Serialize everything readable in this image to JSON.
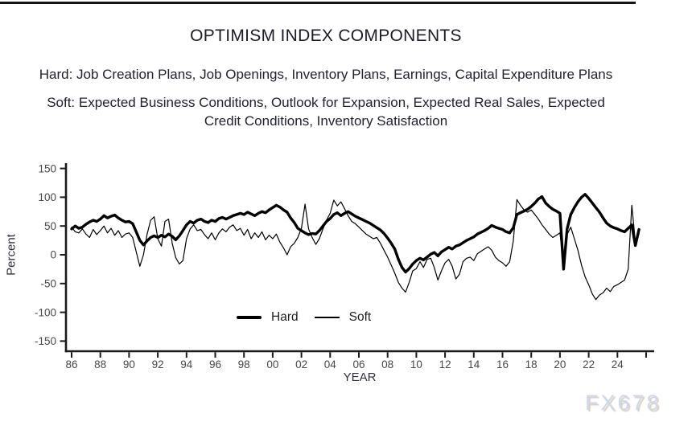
{
  "header": {
    "title": "OPTIMISM INDEX COMPONENTS",
    "hard_line": "Hard: Job Creation Plans, Job Openings, Inventory Plans, Earnings, Capital Expenditure Plans",
    "soft_lines": [
      "Soft: Expected Business Conditions, Outlook for Expansion, Expected Real Sales, Expected",
      "Credit Conditions, Inventory Satisfaction"
    ]
  },
  "watermark": "FX678",
  "chart_data": {
    "type": "line",
    "title": "OPTIMISM INDEX COMPONENTS",
    "xlabel": "YEAR",
    "ylabel": "Percent",
    "grid": false,
    "legend_position": "inside-bottom-center",
    "x_start": 1986.0,
    "x_step": 0.25,
    "xlim": [
      1985.6,
      2026.5
    ],
    "ylim": [
      -150,
      150
    ],
    "yticks": [
      {
        "label": "150",
        "v": 150
      },
      {
        "label": "100",
        "v": 100
      },
      {
        "label": "50",
        "v": 50
      },
      {
        "label": "0",
        "v": 0
      },
      {
        "label": "-50",
        "v": -50
      },
      {
        "label": "-100",
        "v": -100
      },
      {
        "label": "-150",
        "v": -150
      }
    ],
    "xticks": [
      {
        "label": "86",
        "year": 1986
      },
      {
        "label": "88",
        "year": 1988
      },
      {
        "label": "90",
        "year": 1990
      },
      {
        "label": "92",
        "year": 1992
      },
      {
        "label": "94",
        "year": 1994
      },
      {
        "label": "96",
        "year": 1996
      },
      {
        "label": "98",
        "year": 1998
      },
      {
        "label": "00",
        "year": 2000
      },
      {
        "label": "02",
        "year": 2002
      },
      {
        "label": "04",
        "year": 2004
      },
      {
        "label": "06",
        "year": 2006
      },
      {
        "label": "08",
        "year": 2008
      },
      {
        "label": "10",
        "year": 2010
      },
      {
        "label": "12",
        "year": 2012
      },
      {
        "label": "14",
        "year": 2014
      },
      {
        "label": "16",
        "year": 2016
      },
      {
        "label": "18",
        "year": 2018
      },
      {
        "label": "20",
        "year": 2020
      },
      {
        "label": "22",
        "year": 2022
      },
      {
        "label": "24",
        "year": 2024
      },
      {
        "label": "",
        "year": 2026
      }
    ],
    "legend": [
      {
        "name": "Hard",
        "style": "thick"
      },
      {
        "name": "Soft",
        "style": "thin"
      }
    ],
    "series": [
      {
        "name": "Hard",
        "stroke": "#000000",
        "stroke_width": 3.4,
        "values": [
          45,
          50,
          46,
          48,
          53,
          57,
          60,
          58,
          62,
          68,
          64,
          67,
          69,
          64,
          60,
          57,
          58,
          54,
          40,
          25,
          17,
          24,
          30,
          33,
          30,
          34,
          31,
          36,
          32,
          26,
          33,
          42,
          52,
          58,
          55,
          60,
          62,
          58,
          56,
          60,
          58,
          63,
          65,
          62,
          65,
          68,
          70,
          72,
          70,
          74,
          71,
          68,
          72,
          75,
          73,
          78,
          82,
          86,
          83,
          78,
          74,
          64,
          56,
          46,
          42,
          38,
          35,
          37,
          36,
          42,
          50,
          58,
          63,
          70,
          73,
          68,
          72,
          75,
          71,
          67,
          64,
          61,
          58,
          55,
          51,
          47,
          43,
          37,
          29,
          20,
          10,
          -8,
          -22,
          -30,
          -24,
          -16,
          -10,
          -6,
          -9,
          -4,
          1,
          4,
          -2,
          5,
          9,
          13,
          10,
          15,
          17,
          21,
          25,
          28,
          31,
          36,
          39,
          42,
          46,
          51,
          48,
          46,
          44,
          40,
          38,
          47,
          70,
          73,
          76,
          79,
          84,
          90,
          97,
          101,
          90,
          84,
          79,
          76,
          72,
          -25,
          45,
          70,
          82,
          92,
          100,
          105,
          98,
          90,
          82,
          74,
          64,
          55,
          50,
          47,
          45,
          42,
          40,
          46,
          52,
          16,
          44
        ]
      },
      {
        "name": "Soft",
        "stroke": "#000000",
        "stroke_width": 1.2,
        "values": [
          48,
          40,
          38,
          45,
          36,
          30,
          44,
          35,
          42,
          50,
          38,
          46,
          34,
          42,
          30,
          36,
          38,
          30,
          5,
          -20,
          0,
          35,
          60,
          66,
          28,
          15,
          58,
          62,
          20,
          -5,
          -16,
          -10,
          28,
          45,
          52,
          42,
          44,
          35,
          28,
          38,
          26,
          38,
          45,
          40,
          48,
          52,
          42,
          46,
          34,
          44,
          28,
          38,
          30,
          40,
          26,
          34,
          28,
          36,
          22,
          12,
          0,
          14,
          20,
          30,
          46,
          88,
          45,
          30,
          18,
          28,
          45,
          60,
          72,
          95,
          85,
          92,
          80,
          68,
          58,
          54,
          48,
          42,
          36,
          32,
          28,
          30,
          20,
          8,
          -4,
          -18,
          -32,
          -48,
          -58,
          -65,
          -48,
          -28,
          -24,
          -12,
          -22,
          -8,
          -6,
          -22,
          -44,
          -28,
          -14,
          -8,
          -20,
          -42,
          -34,
          -12,
          -6,
          -4,
          -10,
          2,
          6,
          10,
          14,
          8,
          -4,
          -10,
          -14,
          -20,
          -12,
          24,
          96,
          86,
          78,
          74,
          78,
          70,
          62,
          52,
          44,
          36,
          30,
          34,
          38,
          -18,
          35,
          48,
          28,
          8,
          -18,
          -38,
          -52,
          -68,
          -78,
          -70,
          -66,
          -58,
          -64,
          -55,
          -52,
          -48,
          -44,
          -25,
          86,
          22,
          36
        ]
      }
    ]
  }
}
